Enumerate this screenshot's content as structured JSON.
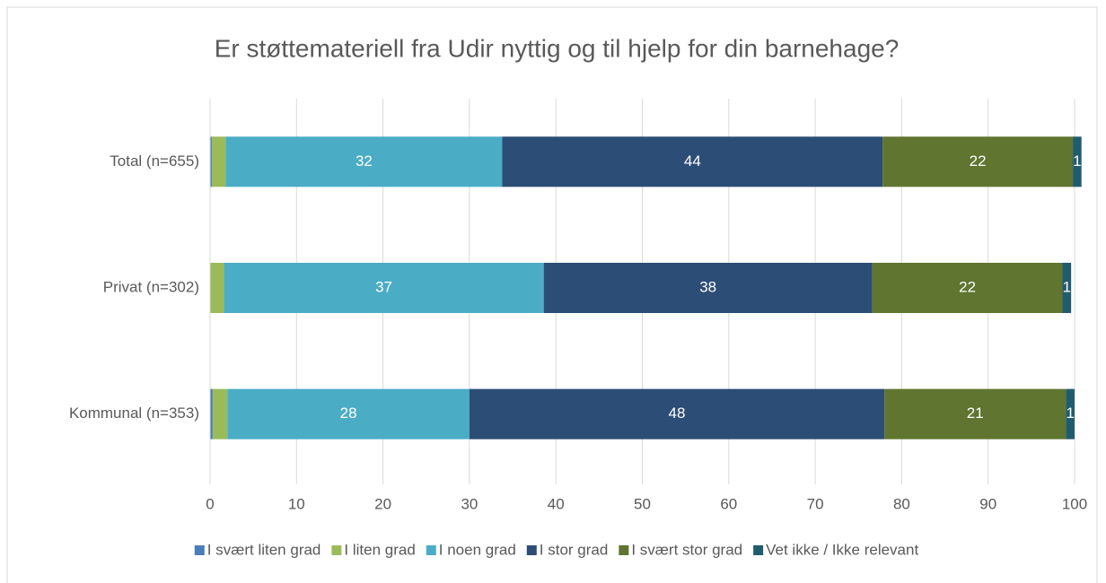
{
  "chart_data": {
    "type": "stacked_barh",
    "title": "Er støttemateriell fra Udir nyttig og til hjelp for din barnehage?",
    "categories": [
      "Total (n=655)",
      "Privat (n=302)",
      "Kommunal (n=353)"
    ],
    "series": [
      {
        "name": "I svært liten grad",
        "color": "#4a7ebb",
        "values": [
          0.2,
          0,
          0.3
        ],
        "labels": false
      },
      {
        "name": "I liten grad",
        "color": "#9bbb59",
        "values": [
          1.6,
          1.6,
          1.7
        ],
        "labels": false
      },
      {
        "name": "I noen grad",
        "color": "#4bacc6",
        "values": [
          32,
          37,
          28
        ],
        "labels": true
      },
      {
        "name": "I stor grad",
        "color": "#2c4d75",
        "values": [
          44,
          38,
          48
        ],
        "labels": true
      },
      {
        "name": "I svært stor grad",
        "color": "#5f7530",
        "values": [
          22,
          22,
          21
        ],
        "labels": true
      },
      {
        "name": "Vet ikke / Ikke relevant",
        "color": "#215c6e",
        "values": [
          1,
          1,
          1
        ],
        "labels": true
      }
    ],
    "xlim": [
      0,
      100
    ],
    "xticks": [
      0,
      10,
      20,
      30,
      40,
      50,
      60,
      70,
      80,
      90,
      100
    ],
    "grid": true,
    "legend": "bottom"
  }
}
